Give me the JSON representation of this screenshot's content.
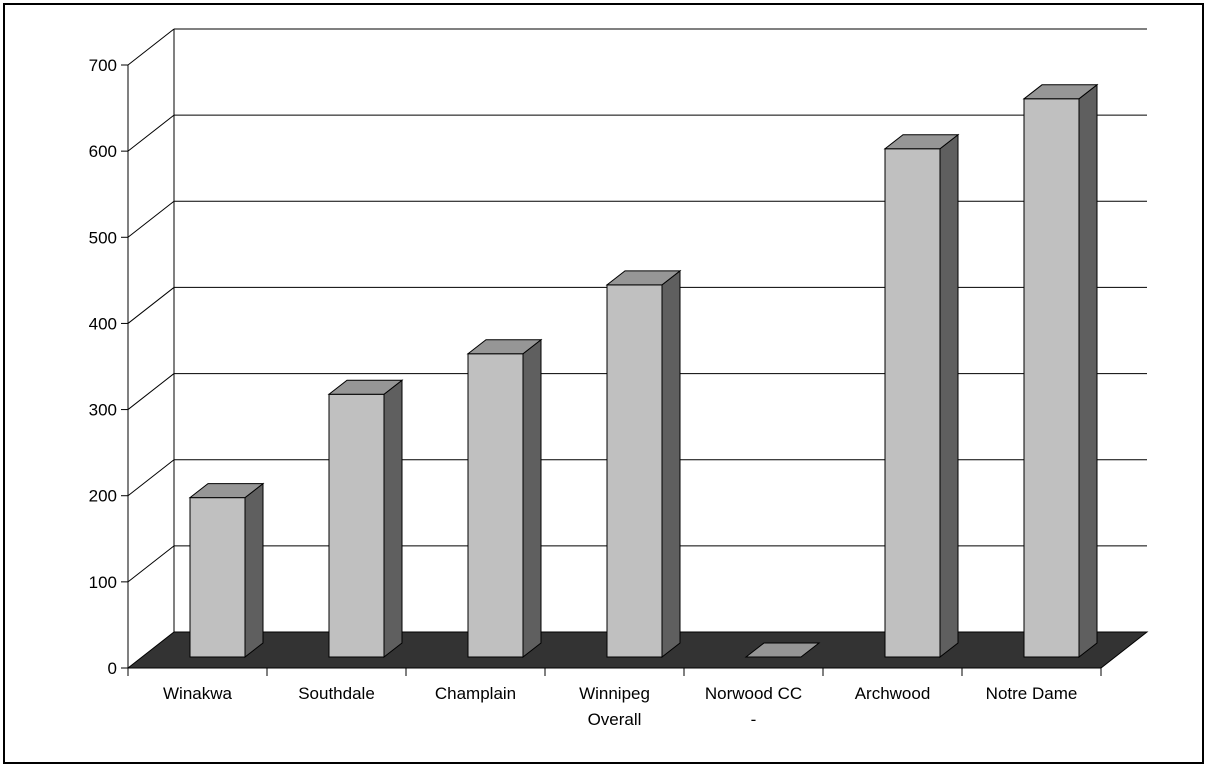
{
  "chart_data": {
    "type": "bar",
    "style": "3d-column",
    "categories": [
      [
        "Winakwa"
      ],
      [
        "Southdale"
      ],
      [
        "Champlain"
      ],
      [
        "Winnipeg",
        "Overall"
      ],
      [
        "Norwood CC",
        "-"
      ],
      [
        "Archwood"
      ],
      [
        "Notre Dame"
      ]
    ],
    "values": [
      185,
      305,
      352,
      432,
      0,
      590,
      648
    ],
    "title": "",
    "xlabel": "",
    "ylabel": "",
    "ylim": [
      0,
      700
    ],
    "y_ticks": [
      "0",
      "100",
      "200",
      "300",
      "400",
      "500",
      "600",
      "700"
    ],
    "grid": true,
    "legend": "none"
  },
  "colors": {
    "bar_front": "#c0c0c0",
    "bar_top": "#969696",
    "bar_side": "#5f5f5f",
    "floor": "#333333",
    "gridline": "#000000"
  }
}
